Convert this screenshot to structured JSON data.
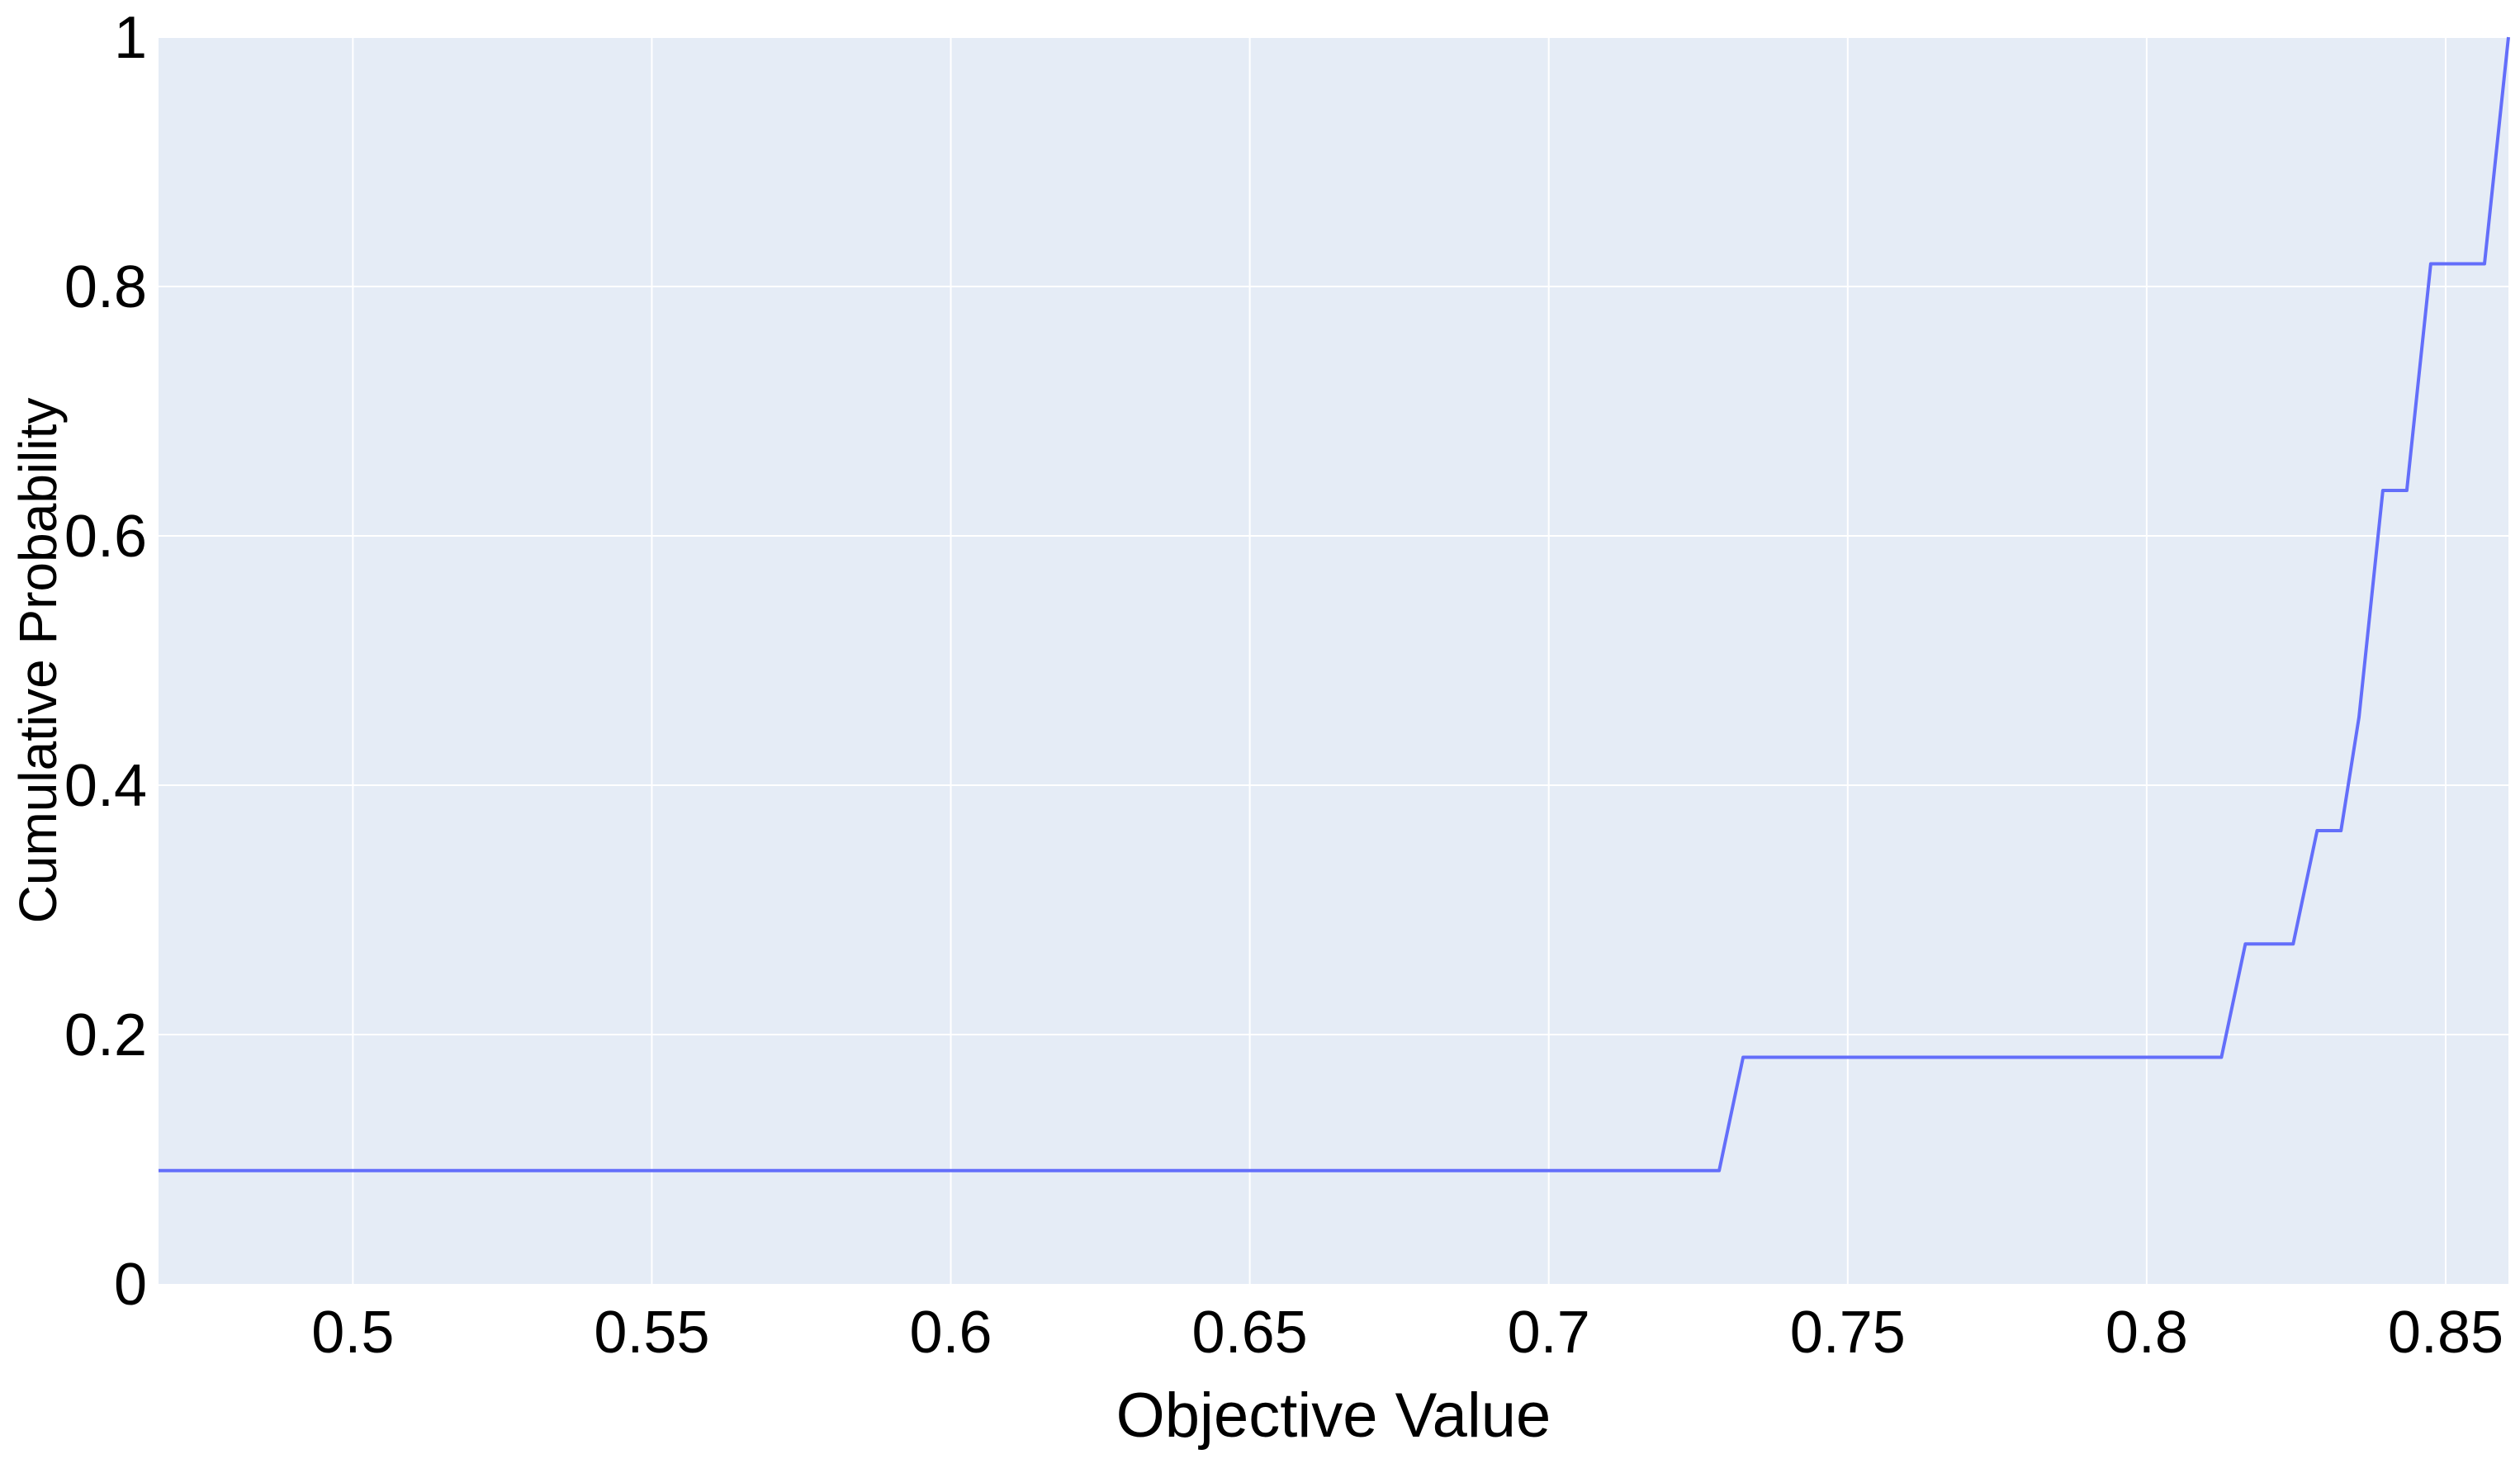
{
  "chart_data": {
    "type": "line",
    "line_shape": "step-like empirical CDF",
    "title": "",
    "xlabel": "Objective Value",
    "ylabel": "Cumulative Probability",
    "xlim": [
      0.4675,
      0.8605
    ],
    "ylim": [
      0,
      1
    ],
    "x_ticks": [
      0.5,
      0.55,
      0.6,
      0.65,
      0.7,
      0.75,
      0.8,
      0.85
    ],
    "x_tick_labels": [
      "0.5",
      "0.55",
      "0.6",
      "0.65",
      "0.7",
      "0.75",
      "0.8",
      "0.85"
    ],
    "y_ticks": [
      0,
      0.2,
      0.4,
      0.6,
      0.8,
      1
    ],
    "y_tick_labels": [
      "0",
      "0.2",
      "0.4",
      "0.6",
      "0.8",
      "1"
    ],
    "grid": true,
    "legend": "none",
    "colors": {
      "plot_background": "#e5ecf6",
      "grid": "#ffffff",
      "line": "#636efa"
    },
    "series": [
      {
        "x": [
          0.4675,
          0.7285,
          0.7325,
          0.8125,
          0.8165,
          0.8245,
          0.8285,
          0.8325,
          0.8355,
          0.8395,
          0.8435,
          0.8475,
          0.8565,
          0.8605
        ],
        "y": [
          0.0909,
          0.0909,
          0.1818,
          0.1818,
          0.2727,
          0.2727,
          0.3636,
          0.3636,
          0.4545,
          0.6364,
          0.6364,
          0.8182,
          0.8182,
          1.0
        ]
      }
    ]
  }
}
